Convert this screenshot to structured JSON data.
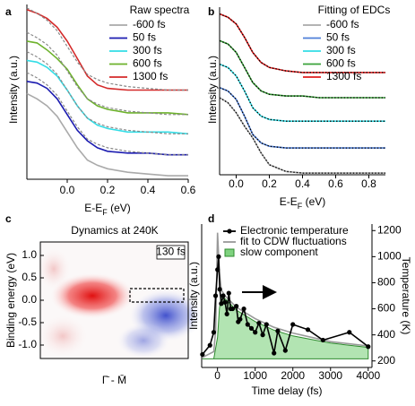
{
  "chart_data": [
    {
      "type": "line",
      "panel_label": "a",
      "legend_title": "Raw spectra",
      "ylabel": "Intensity (a.u.)",
      "xlabel": [
        "E-E",
        "F",
        " (eV)"
      ],
      "x": [
        -0.2,
        -0.15,
        -0.1,
        -0.05,
        0,
        0.05,
        0.1,
        0.15,
        0.2,
        0.3,
        0.4,
        0.5,
        0.6
      ],
      "xlim": [
        -0.2,
        0.6
      ],
      "xticks": [
        {
          "value": 0,
          "label": "0.0"
        },
        0.2,
        0.4,
        0.6
      ],
      "ylim": [
        0,
        10
      ],
      "legend": "upper right",
      "series": [
        {
          "name": "-600 fs",
          "color": "#aaaaaa",
          "values": [
            4.9,
            4.6,
            4.2,
            3.6,
            2.7,
            1.8,
            1.1,
            0.8,
            0.6,
            0.4,
            0.3,
            0.2,
            0.2
          ]
        },
        {
          "name": "50 fs",
          "color": "#1c1cb0",
          "values": [
            5.6,
            5.5,
            5.2,
            4.6,
            3.7,
            2.8,
            2.2,
            1.8,
            1.6,
            1.5,
            1.5,
            1.4,
            1.4
          ]
        },
        {
          "name": "300 fs",
          "color": "#33dde6",
          "values": [
            6.8,
            6.7,
            6.4,
            5.9,
            5.1,
            4.2,
            3.5,
            3.1,
            2.9,
            2.7,
            2.7,
            2.7,
            2.6
          ]
        },
        {
          "name": "600 fs",
          "color": "#6db22c",
          "values": [
            7.9,
            7.8,
            7.4,
            6.9,
            6.3,
            5.4,
            4.6,
            4.2,
            4.0,
            3.8,
            3.8,
            3.8,
            3.7
          ]
        },
        {
          "name": "1300 fs",
          "color": "#d42a2a",
          "values": [
            9.7,
            9.5,
            9.2,
            8.7,
            7.9,
            6.9,
            5.9,
            5.4,
            5.2,
            5.1,
            5.1,
            5.1,
            5.1
          ]
        },
        {
          "color": "#888888",
          "dash": true,
          "values": [
            6.1,
            5.8,
            5.4,
            4.8,
            3.9,
            3.0,
            2.3,
            2.0,
            1.8,
            1.6,
            1.5,
            1.4,
            1.4
          ]
        },
        {
          "color": "#888888",
          "dash": true,
          "values": [
            7.3,
            7.0,
            6.6,
            6.0,
            5.1,
            4.2,
            3.5,
            3.2,
            3.0,
            2.8,
            2.7,
            2.6,
            2.6
          ]
        },
        {
          "color": "#888888",
          "dash": true,
          "values": [
            8.4,
            8.1,
            7.7,
            7.1,
            6.2,
            5.3,
            4.6,
            4.3,
            4.1,
            3.9,
            3.8,
            3.7,
            3.7
          ]
        },
        {
          "color": "#888888",
          "dash": true,
          "values": [
            9.8,
            9.5,
            9.1,
            8.5,
            7.6,
            6.7,
            6.0,
            5.7,
            5.5,
            5.3,
            5.2,
            5.1,
            5.1
          ]
        }
      ]
    },
    {
      "type": "line",
      "panel_label": "b",
      "legend_title": "Fitting of EDCs",
      "ylabel": "Intensity (a.u.)",
      "xlabel": [
        "E-E",
        "F",
        " (eV)"
      ],
      "x": [
        -0.1,
        -0.05,
        0,
        0.05,
        0.1,
        0.15,
        0.2,
        0.3,
        0.4,
        0.5,
        0.6,
        0.7,
        0.8,
        0.9
      ],
      "xlim": [
        -0.1,
        0.9
      ],
      "xticks": [
        {
          "value": 0,
          "label": "0.0"
        },
        0.2,
        0.4,
        0.6,
        0.8
      ],
      "ylim": [
        0,
        10
      ],
      "legend": "upper right",
      "fit_overlay": "#000000",
      "series": [
        {
          "name": "-600 fs",
          "color": "#aaaaaa",
          "values": [
            4.6,
            4.3,
            3.7,
            2.9,
            2.2,
            1.3,
            0.6,
            0.2,
            0.1,
            0.1,
            0.1,
            0.1,
            0.1,
            0.1
          ]
        },
        {
          "name": "50 fs",
          "color": "#4f7fd9",
          "values": [
            5.2,
            5.0,
            4.5,
            3.5,
            2.4,
            1.9,
            1.7,
            1.6,
            1.6,
            1.6,
            1.6,
            1.6,
            1.6,
            1.6
          ]
        },
        {
          "name": "300 fs",
          "color": "#33dde6",
          "values": [
            6.6,
            6.4,
            5.9,
            5.0,
            4.0,
            3.5,
            3.3,
            3.2,
            3.2,
            3.2,
            3.2,
            3.2,
            3.2,
            3.2
          ]
        },
        {
          "name": "600 fs",
          "color": "#3aa23a",
          "values": [
            8.0,
            7.8,
            7.3,
            6.4,
            5.5,
            5.0,
            4.8,
            4.7,
            4.7,
            4.6,
            4.6,
            4.6,
            4.6,
            4.6
          ]
        },
        {
          "name": "1300 fs",
          "color": "#e01e1e",
          "values": [
            9.6,
            9.4,
            9.0,
            8.2,
            7.3,
            6.7,
            6.4,
            6.2,
            6.1,
            6.1,
            6.1,
            6.1,
            6.1,
            6.1
          ]
        }
      ]
    },
    {
      "type": "heatmap",
      "panel_label": "c",
      "title": "Dynamics at 240K",
      "annotation": "130 fs",
      "ylabel": "Binding energy (eV)",
      "xlabel": "Γ̄ - M̄",
      "ylim": [
        -1.3,
        1.3
      ],
      "yticks": [
        {
          "value": 1,
          "label": "1.0"
        },
        0.5,
        {
          "value": 0,
          "label": "0.0"
        },
        -0.5,
        {
          "value": -1,
          "label": "-1.0"
        }
      ]
    },
    {
      "type": "line",
      "panel_label": "d",
      "ylabel": "Intensity (a.u.)",
      "y2label": "Temperature (K)",
      "xlabel": "Time delay (fs)",
      "xlim": [
        -420,
        4100
      ],
      "xticks": [
        0,
        1000,
        2000,
        3000,
        4000
      ],
      "ylim": [
        -0.6,
        9.4
      ],
      "y2lim": [
        150,
        1250
      ],
      "y2ticks": [
        200,
        400,
        600,
        800,
        1000,
        1200
      ],
      "legend": "upper left",
      "series": [
        {
          "name": "slow component",
          "color": "#7fd27f",
          "fill": true,
          "x": [
            -400,
            -100,
            0,
            50,
            100,
            200,
            500,
            1000,
            1500,
            2000,
            3000,
            4000
          ],
          "values": [
            0,
            0,
            1.5,
            3.5,
            4.4,
            4.2,
            3.4,
            2.6,
            2.0,
            1.6,
            1.1,
            0.8
          ]
        },
        {
          "name": "fit to CDW fluctuations",
          "color": "#999999",
          "x": [
            -400,
            -100,
            -50,
            0,
            50,
            100,
            200,
            500,
            1000,
            1500,
            2000,
            3000,
            4000
          ],
          "values": [
            0.1,
            0.5,
            2,
            8.8,
            6,
            4.8,
            4.4,
            3.6,
            2.8,
            2.2,
            1.8,
            1.2,
            0.9
          ]
        },
        {
          "name": "Electronic temperature",
          "color": "#000000",
          "axis": "y2",
          "markers": true,
          "x": [
            -400,
            -200,
            -100,
            -50,
            0,
            30,
            60,
            100,
            150,
            200,
            250,
            300,
            350,
            400,
            500,
            550,
            600,
            700,
            800,
            900,
            1000,
            1100,
            1200,
            1300,
            1500,
            1600,
            1800,
            2000,
            2400,
            2800,
            3500,
            4000
          ],
          "values": [
            250,
            320,
            420,
            700,
            900,
            1000,
            750,
            640,
            700,
            650,
            560,
            720,
            600,
            600,
            620,
            500,
            520,
            600,
            480,
            450,
            420,
            490,
            400,
            480,
            260,
            430,
            280,
            480,
            440,
            360,
            420,
            310
          ]
        }
      ]
    }
  ]
}
